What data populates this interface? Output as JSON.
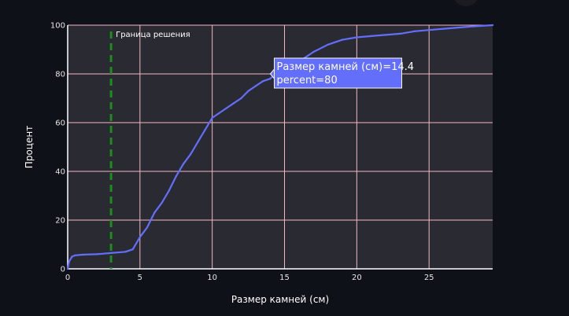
{
  "chart_data": {
    "type": "line",
    "xlabel": "Размер камней (см)",
    "ylabel": "Процент",
    "xlim": [
      0,
      29.4
    ],
    "ylim": [
      0,
      100
    ],
    "x_ticks": [
      0,
      5,
      10,
      15,
      20,
      25
    ],
    "y_ticks": [
      0,
      20,
      40,
      60,
      80,
      100
    ],
    "grid": true,
    "series": [
      {
        "color": "#636efa",
        "x": [
          0,
          0.1,
          0.3,
          0.5,
          1,
          2,
          3,
          4,
          4.5,
          5,
          5.5,
          6,
          6.5,
          7,
          7.5,
          8,
          8.5,
          9,
          9.5,
          10,
          10.5,
          11,
          11.5,
          12,
          12.5,
          13,
          13.5,
          14,
          14.4,
          15,
          16,
          17,
          18,
          19,
          20,
          21,
          22,
          23,
          24,
          25,
          26,
          27,
          28,
          29.4
        ],
        "y": [
          0,
          3,
          5,
          5.5,
          5.8,
          6,
          6.5,
          7,
          8,
          13,
          17,
          23,
          27,
          32,
          38,
          43,
          47,
          52,
          57,
          62,
          64,
          66,
          68,
          70,
          73,
          75,
          77,
          78,
          80,
          82,
          85,
          89,
          92,
          94,
          95,
          95.5,
          96,
          96.5,
          97.5,
          98,
          98.5,
          99,
          99.5,
          100
        ]
      }
    ],
    "vline": {
      "x": 3,
      "color": "#1a8f1a",
      "dash": "dashed",
      "label": "Граница решения"
    },
    "tooltip": {
      "x": 14.4,
      "y": 80,
      "line1": "Размер камней (см)=14.4",
      "line2": "percent=80"
    }
  },
  "colors": {
    "page_bg": "#0f1118",
    "plot_bg": "#2a2a33",
    "grid": "#f4b7c3",
    "series": "#636efa",
    "vline": "#1a8f1a"
  }
}
